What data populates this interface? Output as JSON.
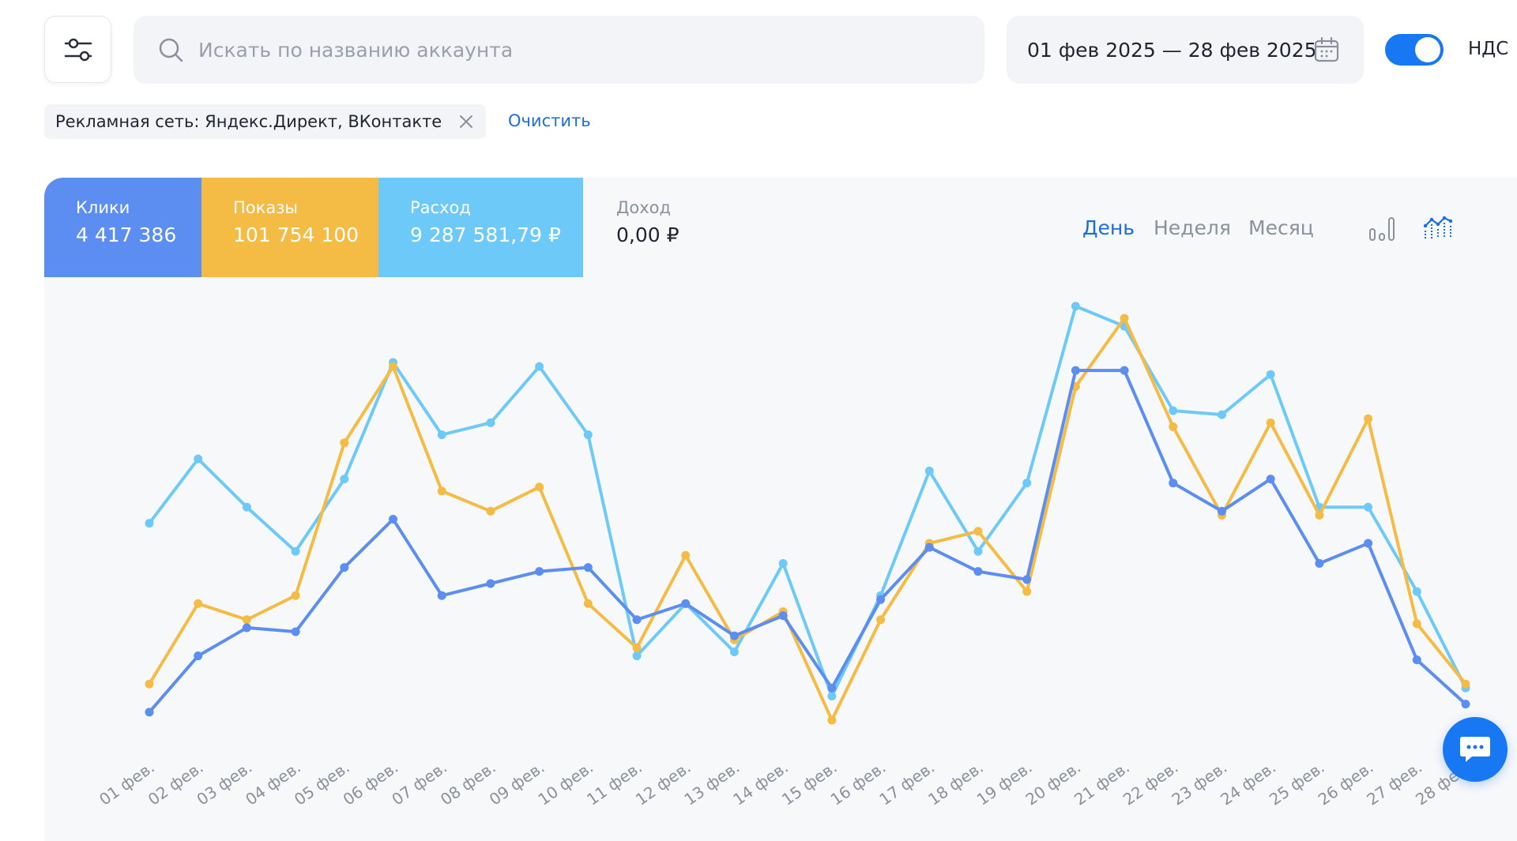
{
  "search": {
    "placeholder": "Искать по названию аккаунта"
  },
  "date_range": "01 фев 2025 — 28 фев 2025",
  "vat_toggle": {
    "label": "НДС",
    "on": true
  },
  "filter_chip": {
    "label": "Рекламная сеть: Яндекс.Директ, ВКонтакте"
  },
  "clear_label": "Очистить",
  "metrics": [
    {
      "label": "Клики",
      "value": "4 417 386"
    },
    {
      "label": "Показы",
      "value": "101 754 100"
    },
    {
      "label": "Расход",
      "value": "9 287 581,79 ₽"
    },
    {
      "label": "Доход",
      "value": "0,00 ₽"
    }
  ],
  "periods": {
    "day": "День",
    "week": "Неделя",
    "month": "Месяц",
    "active": "day"
  },
  "colors": {
    "accent": "#1877f2",
    "clicks": "#5b8ef0",
    "shows": "#f4bb45",
    "spend": "#6dcaf8"
  },
  "chart_data": {
    "type": "line",
    "categories": [
      "01 фев.",
      "02 фев.",
      "03 фев.",
      "04 фев.",
      "05 фев.",
      "06 фев.",
      "07 фев.",
      "08 фев.",
      "09 фев.",
      "10 фев.",
      "11 фев.",
      "12 фев.",
      "13 фев.",
      "14 фев.",
      "15 фев.",
      "16 фев.",
      "17 фев.",
      "18 фев.",
      "19 фев.",
      "20 фев.",
      "21 фев.",
      "22 фев.",
      "23 фев.",
      "24 фев.",
      "25 фев.",
      "26 фев.",
      "27 фев.",
      "28 фев."
    ],
    "y_axis_visible": false,
    "ylim": [
      0,
      1
    ],
    "series": [
      {
        "name": "Клики",
        "color": "#5b8ef0",
        "values": [
          0.02,
          0.16,
          0.23,
          0.22,
          0.38,
          0.5,
          0.31,
          0.34,
          0.37,
          0.38,
          0.25,
          0.29,
          0.21,
          0.26,
          0.08,
          0.3,
          0.43,
          0.37,
          0.35,
          0.87,
          0.87,
          0.59,
          0.52,
          0.6,
          0.39,
          0.44,
          0.15,
          0.04
        ]
      },
      {
        "name": "Показы",
        "color": "#f4bb45",
        "values": [
          0.09,
          0.29,
          0.25,
          0.31,
          0.69,
          0.88,
          0.57,
          0.52,
          0.58,
          0.29,
          0.18,
          0.41,
          0.2,
          0.27,
          0.0,
          0.25,
          0.44,
          0.47,
          0.32,
          0.83,
          1.0,
          0.73,
          0.51,
          0.74,
          0.51,
          0.75,
          0.24,
          0.09
        ]
      },
      {
        "name": "Расход",
        "color": "#6dcaf8",
        "values": [
          0.49,
          0.65,
          0.53,
          0.42,
          0.6,
          0.89,
          0.71,
          0.74,
          0.88,
          0.71,
          0.16,
          0.29,
          0.17,
          0.39,
          0.06,
          0.31,
          0.62,
          0.42,
          0.59,
          1.03,
          0.98,
          0.77,
          0.76,
          0.86,
          0.53,
          0.53,
          0.32,
          0.08
        ]
      }
    ]
  }
}
